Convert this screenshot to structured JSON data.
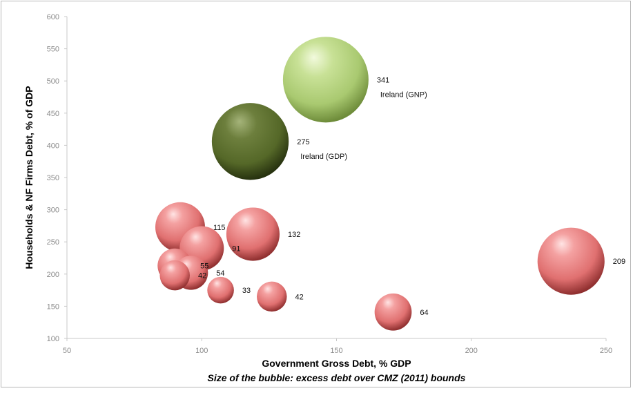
{
  "chart_data": {
    "type": "bubble",
    "xlabel": "Government Gross Debt, % GDP",
    "ylabel": "Households & NF Firms Debt, % of GDP",
    "subtitle": "Size of the bubble: excess debt over CMZ (2011) bounds",
    "xlim": [
      50,
      250
    ],
    "ylim": [
      100,
      600
    ],
    "xticks": [
      50,
      100,
      150,
      200,
      250
    ],
    "yticks": [
      100,
      150,
      200,
      250,
      300,
      350,
      400,
      450,
      500,
      550,
      600
    ],
    "colors": {
      "red": "#e07070",
      "dark_green": "#5a6e2a",
      "light_green": "#b7d67a"
    },
    "points": [
      {
        "x": 146,
        "y": 502,
        "size": 341,
        "label": "341",
        "name": "Ireland (GNP)",
        "color": "light_green"
      },
      {
        "x": 118,
        "y": 406,
        "size": 275,
        "label": "275",
        "name": "Ireland (GDP)",
        "color": "dark_green"
      },
      {
        "x": 237,
        "y": 220,
        "size": 209,
        "label": "209",
        "name": "",
        "color": "red"
      },
      {
        "x": 119,
        "y": 262,
        "size": 132,
        "label": "132",
        "name": "",
        "color": "red"
      },
      {
        "x": 92,
        "y": 273,
        "size": 115,
        "label": "115",
        "name": "",
        "color": "red"
      },
      {
        "x": 100,
        "y": 240,
        "size": 91,
        "label": "91",
        "name": "",
        "color": "red"
      },
      {
        "x": 90,
        "y": 213,
        "size": 55,
        "label": "55",
        "name": "",
        "color": "red"
      },
      {
        "x": 96,
        "y": 202,
        "size": 54,
        "label": "54",
        "name": "",
        "color": "red"
      },
      {
        "x": 90,
        "y": 198,
        "size": 42,
        "label": "42",
        "name": "",
        "color": "red"
      },
      {
        "x": 107,
        "y": 175,
        "size": 33,
        "label": "33",
        "name": "",
        "color": "red"
      },
      {
        "x": 126,
        "y": 165,
        "size": 42,
        "label": "42",
        "name": "",
        "color": "red"
      },
      {
        "x": 171,
        "y": 141,
        "size": 64,
        "label": "64",
        "name": "",
        "color": "red"
      }
    ]
  }
}
